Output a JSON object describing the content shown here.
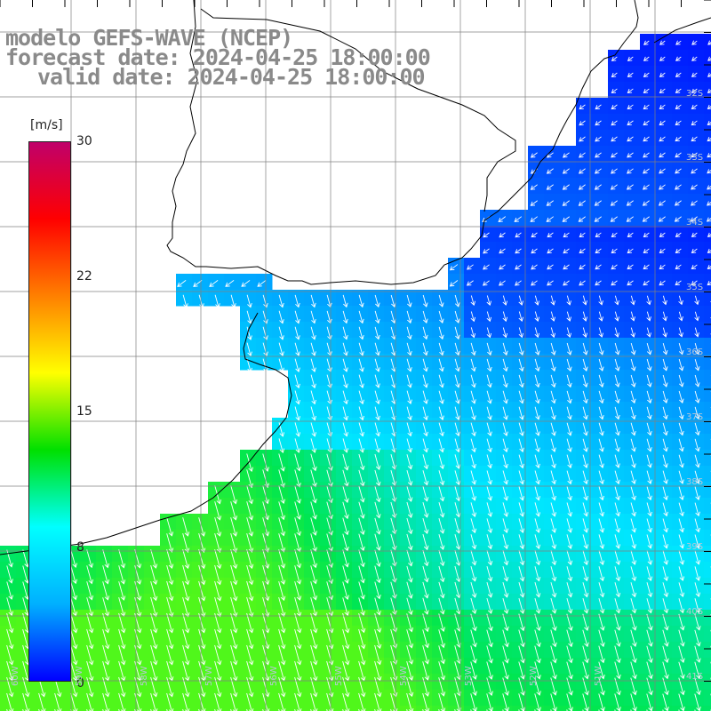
{
  "header": {
    "title_line1": "modelo GEFS-WAVE (NCEP)",
    "title_line2": "forecast date: 2024-04-25 18:00:00",
    "title_line3": "valid date: 2024-04-25 18:00:00"
  },
  "colorbar": {
    "unit": "[m/s]",
    "ticks": [
      "30",
      "22",
      "15",
      "8",
      "0"
    ],
    "tick_values": [
      30,
      22,
      15,
      8,
      0
    ],
    "colors": [
      "#0000ff",
      "#00b0ff",
      "#00ffff",
      "#00e000",
      "#ffff00",
      "#ff8000",
      "#ff0000",
      "#c0006a"
    ]
  },
  "axes": {
    "lat_labels": [
      "32S",
      "33S",
      "34S",
      "35S",
      "36S",
      "37S",
      "38S",
      "39S",
      "40S",
      "41S"
    ],
    "lon_labels": [
      "60W",
      "59W",
      "58W",
      "57W",
      "56W",
      "55W",
      "54W",
      "53W",
      "52W",
      "51W"
    ]
  },
  "map": {
    "type": "wind-field",
    "variable": "wind speed",
    "units": "m/s",
    "range": [
      0,
      30
    ],
    "coast_color": "#000000",
    "grid_color": "#808080",
    "arrow_color": "#ffffff"
  }
}
